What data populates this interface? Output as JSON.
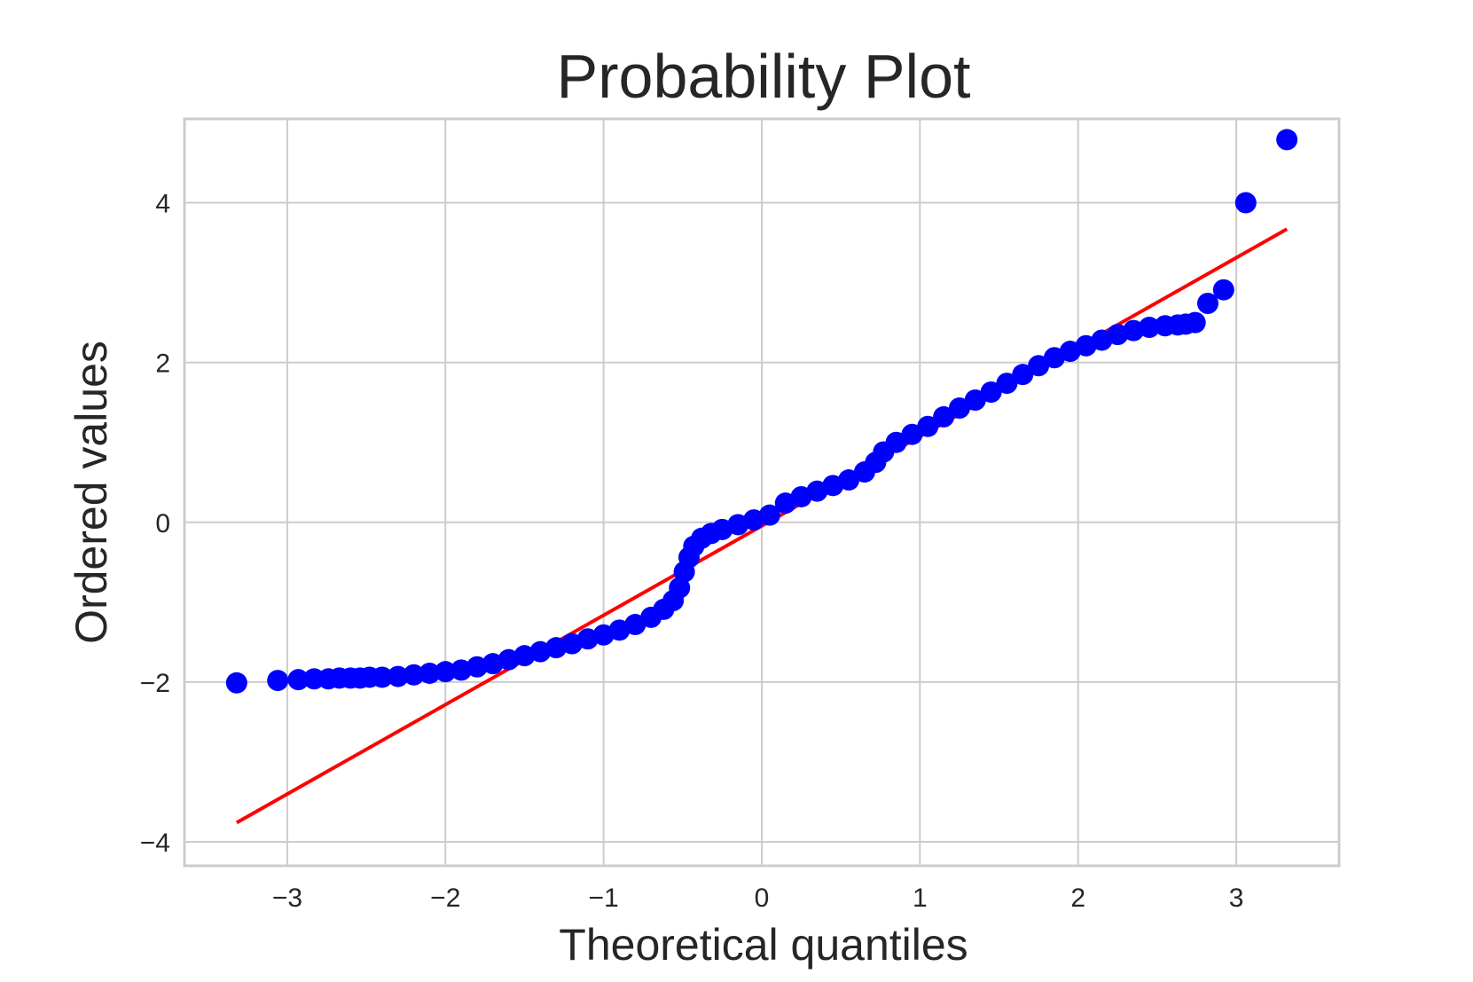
{
  "chart_data": {
    "type": "scatter",
    "title": "Probability Plot",
    "xlabel": "Theoretical quantiles",
    "ylabel": "Ordered values",
    "xlim": [
      -3.65,
      3.65
    ],
    "ylim": [
      -4.3,
      5.05
    ],
    "grid": true,
    "x_ticks": [
      -3,
      -2,
      -1,
      0,
      1,
      2,
      3
    ],
    "x_tick_labels": [
      "−3",
      "−2",
      "−1",
      "0",
      "1",
      "2",
      "3"
    ],
    "y_ticks": [
      -4,
      -2,
      0,
      2,
      4
    ],
    "y_tick_labels": [
      "−4",
      "−2",
      "0",
      "2",
      "4"
    ],
    "series": [
      {
        "marker_color": "#0000ff",
        "points": [
          [
            -3.32,
            -2.01
          ],
          [
            -3.06,
            -1.98
          ],
          [
            -2.93,
            -1.97
          ],
          [
            -2.83,
            -1.96
          ],
          [
            -2.74,
            -1.96
          ],
          [
            -2.67,
            -1.95
          ],
          [
            -2.6,
            -1.95
          ],
          [
            -2.54,
            -1.95
          ],
          [
            -2.48,
            -1.94
          ],
          [
            -2.4,
            -1.94
          ],
          [
            -2.3,
            -1.93
          ],
          [
            -2.2,
            -1.91
          ],
          [
            -2.1,
            -1.89
          ],
          [
            -2.0,
            -1.87
          ],
          [
            -1.9,
            -1.85
          ],
          [
            -1.8,
            -1.81
          ],
          [
            -1.7,
            -1.77
          ],
          [
            -1.6,
            -1.72
          ],
          [
            -1.5,
            -1.67
          ],
          [
            -1.4,
            -1.62
          ],
          [
            -1.3,
            -1.57
          ],
          [
            -1.2,
            -1.52
          ],
          [
            -1.1,
            -1.46
          ],
          [
            -1.0,
            -1.41
          ],
          [
            -0.9,
            -1.35
          ],
          [
            -0.8,
            -1.28
          ],
          [
            -0.7,
            -1.19
          ],
          [
            -0.62,
            -1.09
          ],
          [
            -0.56,
            -0.98
          ],
          [
            -0.52,
            -0.82
          ],
          [
            -0.49,
            -0.62
          ],
          [
            -0.46,
            -0.44
          ],
          [
            -0.43,
            -0.3
          ],
          [
            -0.38,
            -0.2
          ],
          [
            -0.32,
            -0.14
          ],
          [
            -0.25,
            -0.09
          ],
          [
            -0.15,
            -0.03
          ],
          [
            -0.05,
            0.03
          ],
          [
            0.05,
            0.09
          ],
          [
            0.15,
            0.24
          ],
          [
            0.25,
            0.32
          ],
          [
            0.35,
            0.39
          ],
          [
            0.45,
            0.46
          ],
          [
            0.55,
            0.53
          ],
          [
            0.65,
            0.63
          ],
          [
            0.72,
            0.75
          ],
          [
            0.77,
            0.88
          ],
          [
            0.85,
            1.0
          ],
          [
            0.95,
            1.1
          ],
          [
            1.05,
            1.2
          ],
          [
            1.15,
            1.32
          ],
          [
            1.25,
            1.43
          ],
          [
            1.35,
            1.53
          ],
          [
            1.45,
            1.63
          ],
          [
            1.55,
            1.74
          ],
          [
            1.65,
            1.85
          ],
          [
            1.75,
            1.96
          ],
          [
            1.85,
            2.06
          ],
          [
            1.95,
            2.14
          ],
          [
            2.05,
            2.21
          ],
          [
            2.15,
            2.28
          ],
          [
            2.25,
            2.35
          ],
          [
            2.35,
            2.4
          ],
          [
            2.45,
            2.44
          ],
          [
            2.55,
            2.46
          ],
          [
            2.63,
            2.47
          ],
          [
            2.68,
            2.48
          ],
          [
            2.74,
            2.5
          ],
          [
            2.82,
            2.74
          ],
          [
            2.92,
            2.91
          ],
          [
            3.06,
            4.0
          ],
          [
            3.32,
            4.79
          ]
        ]
      }
    ],
    "fit_line": {
      "color": "#ff0000",
      "x": [
        -3.32,
        3.32
      ],
      "y": [
        -3.76,
        3.67
      ]
    }
  }
}
